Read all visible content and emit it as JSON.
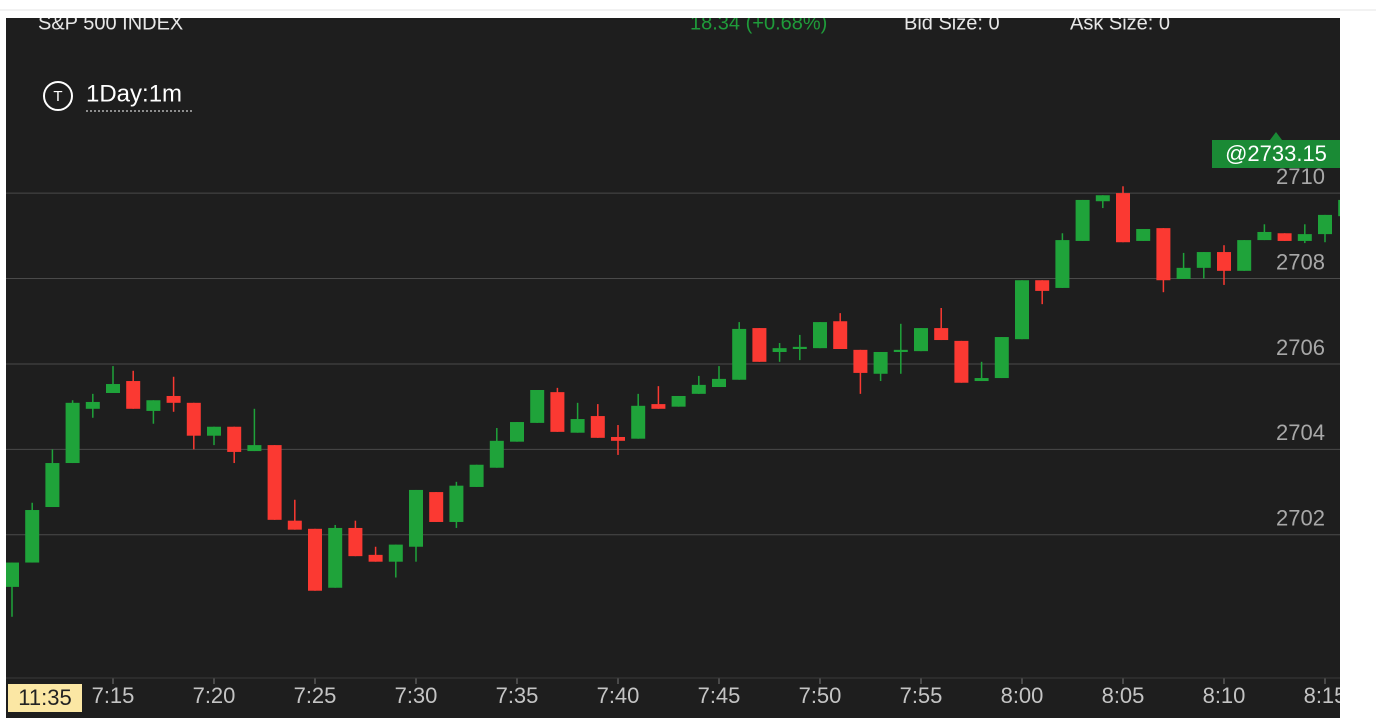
{
  "chart_data": {
    "type": "candlestick",
    "title": "S&P 500 INDEX",
    "change": "18.34 (+0.68%)",
    "bid_size": "Bid Size: 0",
    "ask_size": "Ask Size: 0",
    "interval": "1Day:1m",
    "price_tag": "@2733.15",
    "time_label": "11:35",
    "up_color": "#1fa33a",
    "down_color": "#fb3932",
    "x": [
      "7:10",
      "7:11",
      "7:12",
      "7:13",
      "7:14",
      "7:15",
      "7:16",
      "7:17",
      "7:18",
      "7:19",
      "7:20",
      "7:21",
      "7:22",
      "7:23",
      "7:24",
      "7:25",
      "7:26",
      "7:27",
      "7:28",
      "7:29",
      "7:30",
      "7:31",
      "7:32",
      "7:33",
      "7:34",
      "7:35",
      "7:36",
      "7:37",
      "7:38",
      "7:39",
      "7:40",
      "7:41",
      "7:42",
      "7:43",
      "7:44",
      "7:45",
      "7:46",
      "7:47",
      "7:48",
      "7:49",
      "7:50",
      "7:51",
      "7:52",
      "7:53",
      "7:54",
      "7:55",
      "7:56",
      "7:57",
      "7:58",
      "7:59",
      "8:00",
      "8:01",
      "8:02",
      "8:03",
      "8:04",
      "8:05",
      "8:06",
      "8:07",
      "8:08",
      "8:09",
      "8:10",
      "8:11",
      "8:12",
      "8:13",
      "8:14",
      "8:15",
      "8:16"
    ],
    "open": [
      2700.78,
      2701.35,
      2702.65,
      2703.68,
      2704.95,
      2705.32,
      2705.6,
      2704.9,
      2705.25,
      2705.09,
      2704.32,
      2704.53,
      2703.96,
      2704.1,
      2702.33,
      2702.14,
      2700.76,
      2702.16,
      2701.53,
      2701.37,
      2701.72,
      2703.0,
      2702.3,
      2703.12,
      2703.57,
      2704.18,
      2704.62,
      2705.34,
      2704.39,
      2704.78,
      2704.29,
      2704.25,
      2705.06,
      2705.0,
      2705.3,
      2705.46,
      2705.63,
      2706.84,
      2706.28,
      2706.35,
      2706.37,
      2707.0,
      2706.33,
      2705.77,
      2706.28,
      2706.3,
      2706.84,
      2706.54,
      2705.6,
      2705.67,
      2706.58,
      2707.96,
      2707.78,
      2708.88,
      2709.81,
      2710.0,
      2708.88,
      2709.18,
      2707.99,
      2708.25,
      2708.62,
      2708.18,
      2708.9,
      2709.06,
      2708.88,
      2709.04,
      2709.46
    ],
    "high": [
      2701.35,
      2702.75,
      2704.0,
      2705.15,
      2705.3,
      2705.95,
      2705.84,
      2705.15,
      2705.7,
      2705.09,
      2704.53,
      2704.53,
      2704.95,
      2704.1,
      2702.82,
      2702.14,
      2702.23,
      2702.33,
      2701.72,
      2701.77,
      2703.05,
      2703.0,
      2703.24,
      2703.64,
      2704.5,
      2704.64,
      2705.39,
      2705.44,
      2705.09,
      2705.06,
      2704.57,
      2705.3,
      2705.48,
      2705.25,
      2705.72,
      2705.95,
      2706.98,
      2706.84,
      2706.49,
      2706.68,
      2706.98,
      2707.19,
      2706.33,
      2706.28,
      2706.94,
      2706.84,
      2707.31,
      2706.54,
      2706.05,
      2706.63,
      2707.96,
      2707.96,
      2709.06,
      2709.84,
      2709.95,
      2710.16,
      2709.16,
      2709.18,
      2708.6,
      2708.62,
      2708.78,
      2708.9,
      2709.27,
      2709.06,
      2709.27,
      2709.49,
      2709.84
    ],
    "low": [
      2700.08,
      2701.35,
      2702.65,
      2703.68,
      2704.74,
      2705.32,
      2704.95,
      2704.6,
      2704.88,
      2704.0,
      2704.1,
      2703.68,
      2703.96,
      2702.35,
      2702.12,
      2700.69,
      2700.76,
      2701.5,
      2701.37,
      2701.0,
      2701.37,
      2702.3,
      2702.16,
      2703.12,
      2703.57,
      2704.18,
      2704.62,
      2704.41,
      2704.39,
      2704.27,
      2703.87,
      2704.25,
      2704.95,
      2705.0,
      2705.3,
      2705.46,
      2705.63,
      2706.05,
      2706.05,
      2706.09,
      2706.37,
      2706.35,
      2705.3,
      2705.6,
      2705.77,
      2706.3,
      2706.56,
      2705.56,
      2705.6,
      2705.67,
      2706.58,
      2707.4,
      2707.78,
      2708.88,
      2709.65,
      2708.85,
      2708.88,
      2707.68,
      2707.99,
      2708.0,
      2707.85,
      2708.18,
      2708.9,
      2708.88,
      2708.83,
      2708.85,
      2709.46
    ],
    "close": [
      2701.35,
      2702.58,
      2703.68,
      2705.09,
      2705.11,
      2705.53,
      2704.95,
      2705.15,
      2705.09,
      2704.32,
      2704.53,
      2703.94,
      2704.1,
      2702.35,
      2702.12,
      2700.69,
      2702.16,
      2701.5,
      2701.37,
      2701.77,
      2703.05,
      2702.3,
      2703.15,
      2703.64,
      2704.2,
      2704.64,
      2705.39,
      2704.41,
      2704.71,
      2704.27,
      2704.2,
      2705.02,
      2704.95,
      2705.25,
      2705.51,
      2705.65,
      2706.82,
      2706.05,
      2706.37,
      2706.4,
      2706.98,
      2706.35,
      2705.79,
      2706.28,
      2706.33,
      2706.84,
      2706.56,
      2705.56,
      2705.67,
      2706.63,
      2707.96,
      2707.71,
      2708.9,
      2709.84,
      2709.95,
      2708.85,
      2709.16,
      2707.96,
      2708.25,
      2708.62,
      2708.18,
      2708.9,
      2709.09,
      2708.88,
      2709.04,
      2709.49,
      2709.84
    ],
    "ylim": [
      2698.6,
      2714.1
    ],
    "yticks": [
      2702,
      2704,
      2706,
      2708,
      2710
    ],
    "xticks": [
      "7:15",
      "7:20",
      "7:25",
      "7:30",
      "7:35",
      "7:40",
      "7:45",
      "7:50",
      "7:55",
      "8:00",
      "8:05",
      "8:10",
      "8:15"
    ],
    "grid": true
  }
}
